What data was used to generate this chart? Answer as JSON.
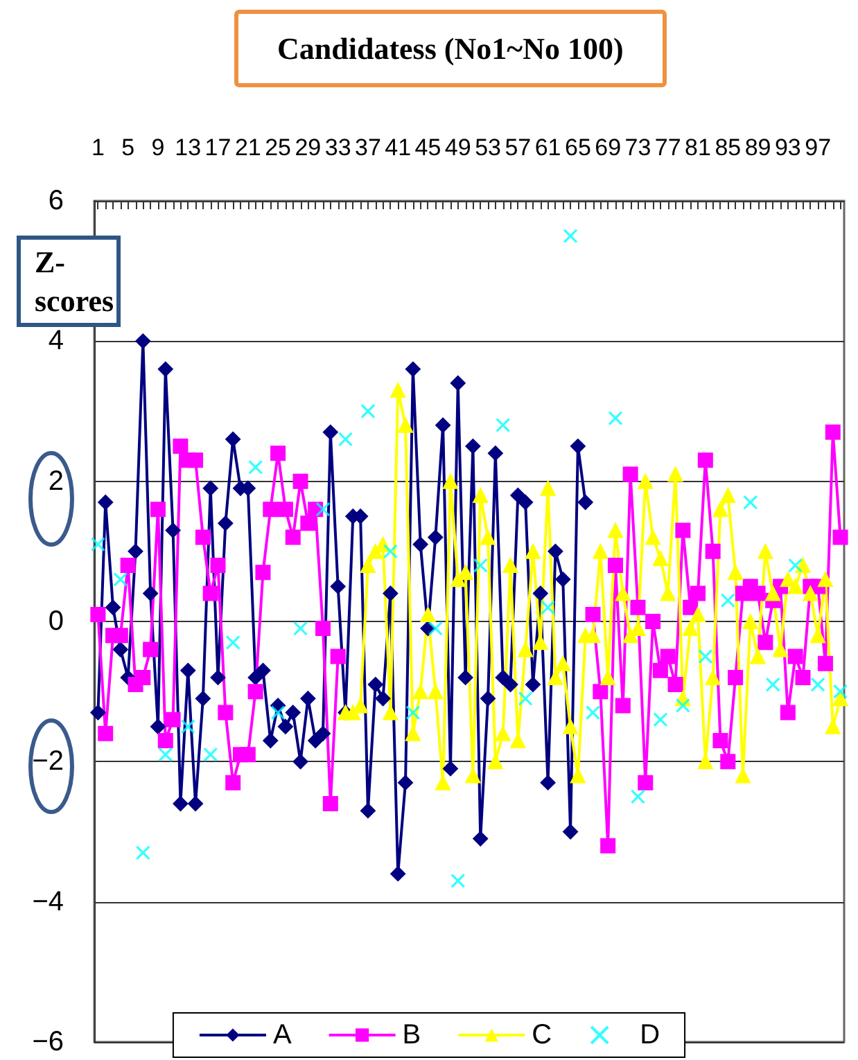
{
  "chart_data": {
    "type": "line",
    "title": "Candidatess (No1~No 100)",
    "ylabel": "Z-scores",
    "categories": [
      "1",
      null,
      null,
      null,
      "5",
      null,
      null,
      null,
      "9",
      null,
      null,
      null,
      "13",
      null,
      null,
      null,
      "17",
      null,
      null,
      null,
      "21",
      null,
      null,
      null,
      "25",
      null,
      null,
      null,
      "29",
      null,
      null,
      null,
      "33",
      null,
      null,
      null,
      "37",
      null,
      null,
      null,
      "41",
      null,
      null,
      null,
      "45",
      null,
      null,
      null,
      "49",
      null,
      null,
      null,
      "53",
      null,
      null,
      null,
      "57",
      null,
      null,
      null,
      "61",
      null,
      null,
      null,
      "65",
      null,
      null,
      null,
      "69",
      null,
      null,
      null,
      "73",
      null,
      null,
      null,
      "77",
      null,
      null,
      null,
      "81",
      null,
      null,
      null,
      "85",
      null,
      null,
      null,
      "89",
      null,
      null,
      null,
      "93",
      null,
      null,
      null,
      "97",
      null,
      null,
      null
    ],
    "series": [
      {
        "name": "A",
        "color": "#000080",
        "marker": "diamond",
        "values": [
          -1.3,
          1.7,
          0.2,
          -0.4,
          -0.8,
          1.0,
          4.0,
          0.4,
          -1.5,
          3.6,
          1.3,
          -2.6,
          -0.7,
          -2.6,
          -1.1,
          1.9,
          -0.8,
          1.4,
          2.6,
          1.9,
          1.9,
          -0.8,
          -0.7,
          -1.7,
          -1.2,
          -1.5,
          -1.3,
          -2.0,
          -1.1,
          -1.7,
          -1.6,
          2.7,
          0.5,
          -1.3,
          1.5,
          1.5,
          -2.7,
          -0.9,
          -1.1,
          0.4,
          -3.6,
          -2.3,
          3.6,
          1.1,
          -0.1,
          1.2,
          2.8,
          -2.1,
          3.4,
          -0.8,
          2.5,
          -3.1,
          -1.1,
          2.4,
          -0.8,
          -0.9,
          1.8,
          1.7,
          -0.9,
          0.4,
          -2.3,
          1.0,
          0.6,
          -3.0,
          2.5,
          1.7,
          null,
          null,
          null,
          null,
          null,
          null,
          null,
          null,
          null,
          null,
          null,
          null,
          null,
          null,
          null,
          null,
          null,
          null,
          null,
          null,
          null,
          null,
          null,
          null,
          null,
          null,
          null,
          null,
          null,
          null,
          null,
          null,
          null,
          null
        ]
      },
      {
        "name": "B",
        "color": "#ff00ff",
        "marker": "square",
        "values": [
          0.1,
          -1.6,
          -0.2,
          -0.2,
          0.8,
          -0.9,
          -0.8,
          -0.4,
          1.6,
          -1.7,
          -1.4,
          2.5,
          2.3,
          2.3,
          1.2,
          0.4,
          0.8,
          -1.3,
          -2.3,
          -1.9,
          -1.9,
          -1.0,
          0.7,
          1.6,
          2.4,
          1.6,
          1.2,
          2.0,
          1.4,
          1.6,
          -0.1,
          -2.6,
          -0.5,
          null,
          null,
          null,
          null,
          null,
          null,
          null,
          null,
          null,
          null,
          null,
          null,
          null,
          null,
          null,
          null,
          null,
          null,
          null,
          null,
          null,
          null,
          null,
          null,
          null,
          null,
          null,
          null,
          null,
          null,
          null,
          null,
          null,
          0.1,
          -1.0,
          -3.2,
          0.8,
          -1.2,
          2.1,
          0.2,
          -2.3,
          0.0,
          -0.7,
          -0.5,
          -0.9,
          1.3,
          0.2,
          0.4,
          2.3,
          1.0,
          -1.7,
          -2.0,
          -0.8,
          0.4,
          0.5,
          0.4,
          -0.3,
          0.3,
          0.5,
          -1.3,
          -0.5,
          -0.8,
          0.5,
          0.5,
          -0.6,
          2.7,
          1.2
        ]
      },
      {
        "name": "C",
        "color": "#ffff00",
        "marker": "triangle",
        "values": [
          null,
          null,
          null,
          null,
          null,
          null,
          null,
          null,
          null,
          null,
          null,
          null,
          null,
          null,
          null,
          null,
          null,
          null,
          null,
          null,
          null,
          null,
          null,
          null,
          null,
          null,
          null,
          null,
          null,
          null,
          null,
          null,
          null,
          -1.3,
          -1.3,
          -1.2,
          0.8,
          1.0,
          1.1,
          -1.3,
          3.3,
          2.8,
          -1.6,
          -1.0,
          0.1,
          -1.0,
          -2.3,
          2.0,
          0.6,
          0.7,
          -2.2,
          1.8,
          1.2,
          -2.0,
          -1.6,
          0.8,
          -1.7,
          -0.4,
          1.0,
          -0.3,
          1.9,
          -0.8,
          -0.6,
          -1.5,
          -2.2,
          -0.2,
          -0.2,
          1.0,
          -0.8,
          1.3,
          0.4,
          -0.2,
          -0.1,
          2.0,
          1.2,
          0.9,
          0.4,
          2.1,
          -1.1,
          -0.1,
          0.1,
          -2.0,
          -0.8,
          1.6,
          1.8,
          0.7,
          -2.2,
          0.0,
          -0.5,
          1.0,
          0.4,
          -0.4,
          0.6,
          0.5,
          0.8,
          0.4,
          -0.2,
          0.6,
          -1.5,
          -1.1
        ]
      },
      {
        "name": "D",
        "color": "#00ffff",
        "marker": "cross",
        "type": "scatter",
        "values": [
          1.1,
          null,
          null,
          0.6,
          null,
          null,
          -3.3,
          null,
          null,
          -1.9,
          null,
          null,
          -1.5,
          null,
          null,
          -1.9,
          null,
          null,
          -0.3,
          null,
          null,
          2.2,
          null,
          null,
          -1.3,
          null,
          null,
          -0.1,
          null,
          null,
          1.6,
          null,
          null,
          2.6,
          null,
          null,
          3.0,
          null,
          null,
          1.0,
          null,
          null,
          -1.3,
          null,
          null,
          -0.1,
          null,
          null,
          -3.7,
          null,
          null,
          0.8,
          null,
          null,
          2.8,
          null,
          null,
          -1.1,
          null,
          null,
          0.2,
          null,
          null,
          5.5,
          null,
          null,
          -1.3,
          null,
          null,
          2.9,
          null,
          null,
          -2.5,
          null,
          null,
          -1.4,
          null,
          null,
          -1.2,
          null,
          null,
          -0.5,
          null,
          null,
          0.3,
          null,
          null,
          1.7,
          null,
          null,
          -0.9,
          null,
          null,
          0.8,
          null,
          null,
          -0.9,
          null,
          null,
          -1.0
        ]
      }
    ],
    "ylim": [
      -6,
      6
    ],
    "yticks": [
      -6,
      -4,
      -2,
      0,
      2,
      4,
      6
    ],
    "grid": "y",
    "legend": "bottom"
  }
}
